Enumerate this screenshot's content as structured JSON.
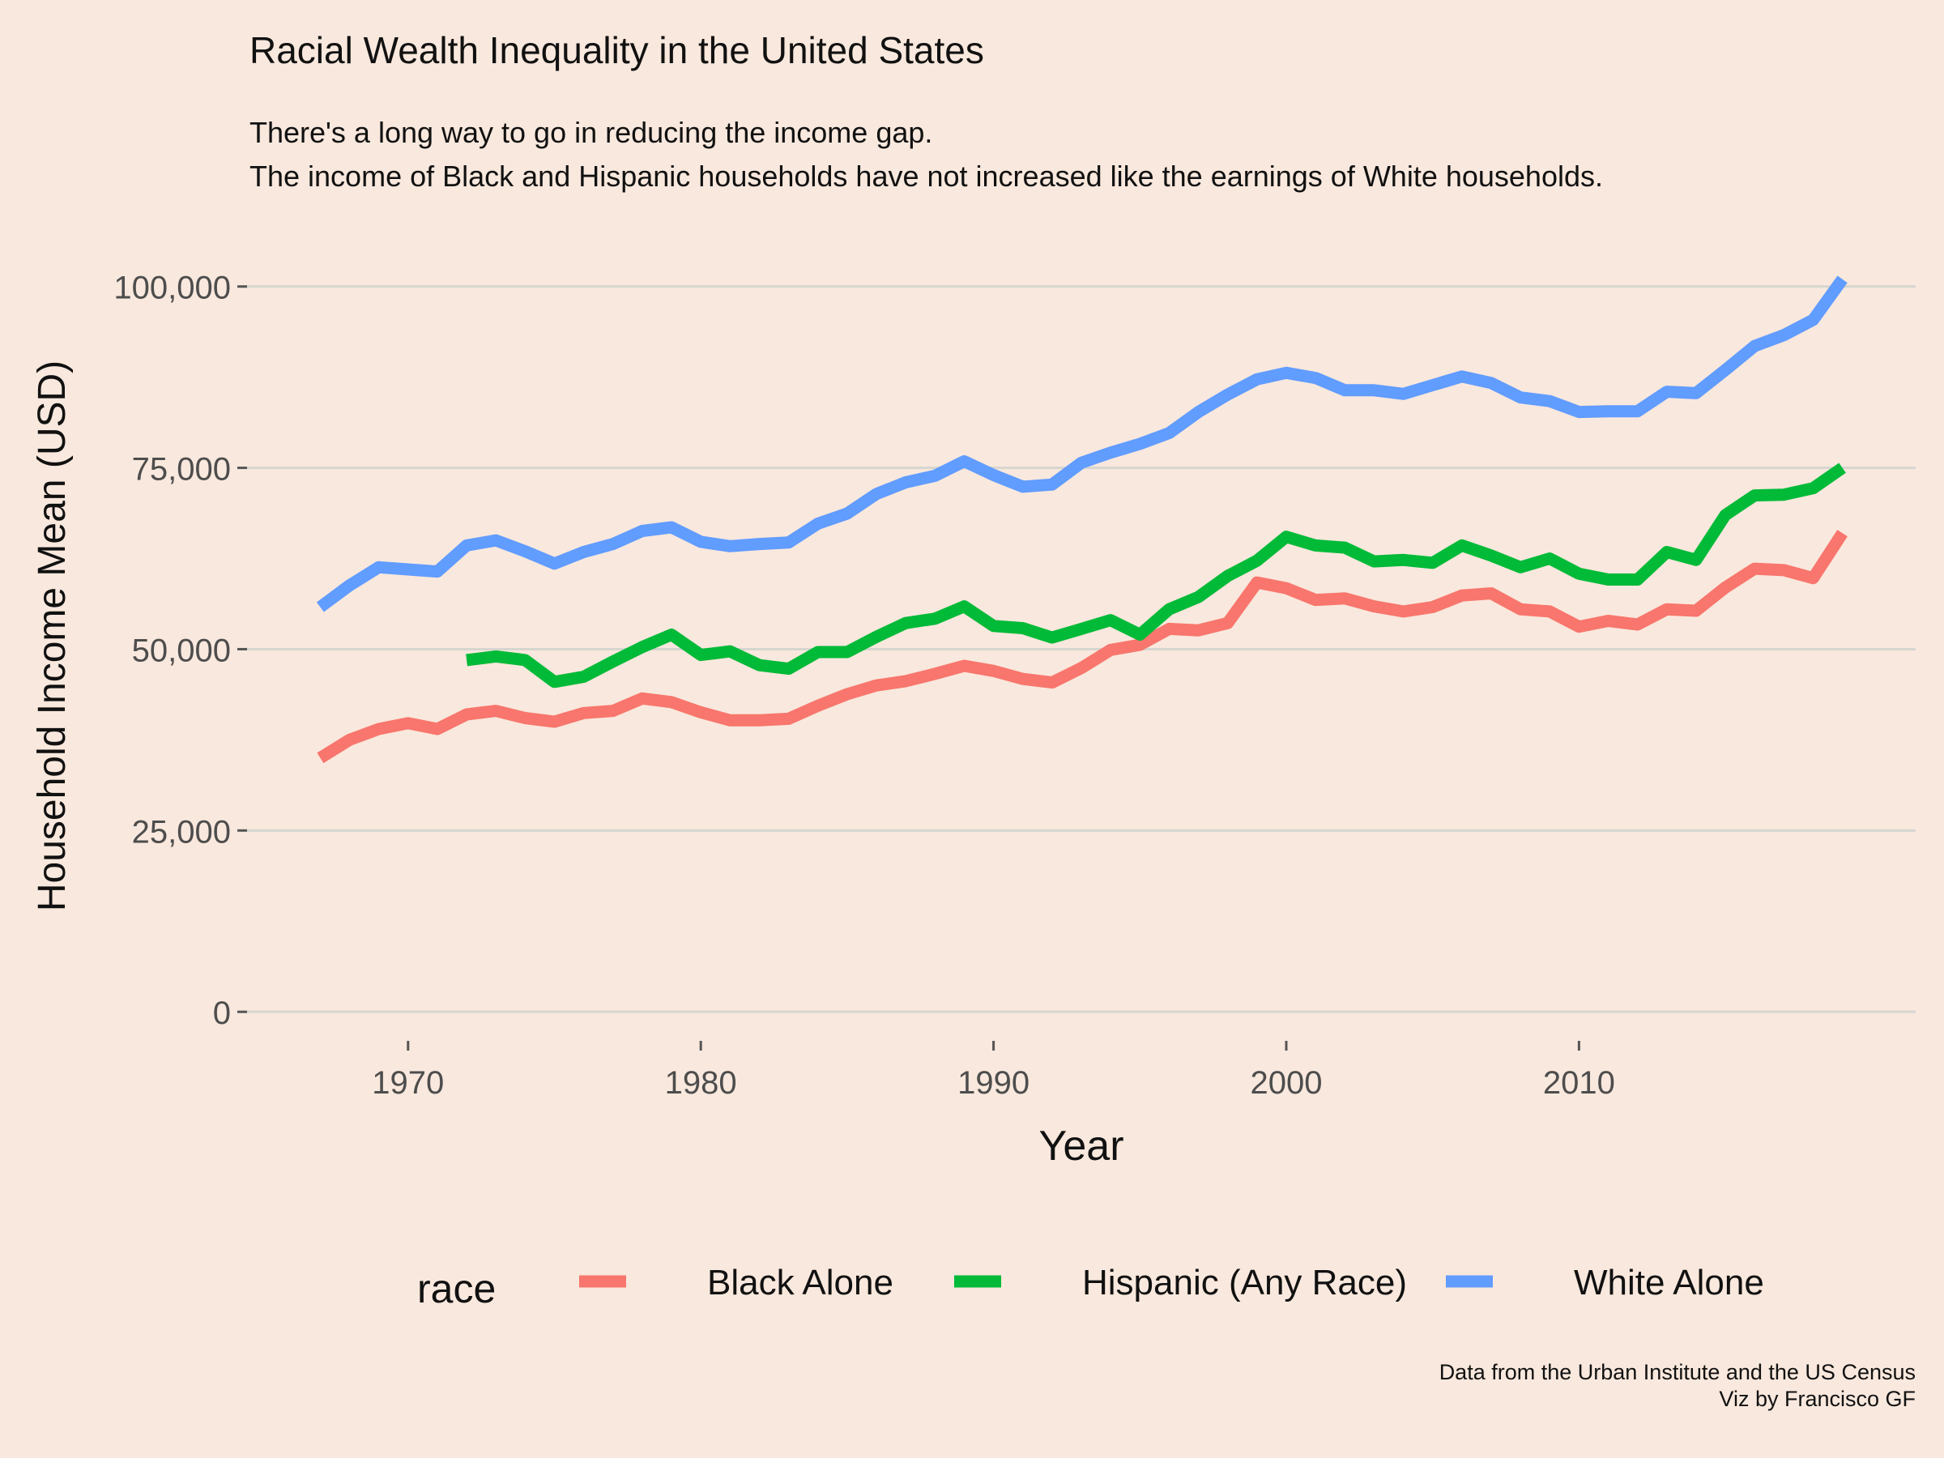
{
  "title": "Racial Wealth Inequality in the United States",
  "subtitle_lines": [
    "There's a long way to go in reducing the income gap.",
    "The income of Black and Hispanic households have not increased like the earnings of White households."
  ],
  "caption_lines": [
    "Data from the Urban Institute and the US Census",
    "Viz by Francisco GF"
  ],
  "chart_data": {
    "type": "line",
    "title": "Racial Wealth Inequality in the United States",
    "xlabel": "Year",
    "ylabel": "Household Income Mean (USD)",
    "xlim": [
      1964.5,
      2021.5
    ],
    "ylim": [
      -4000,
      106000
    ],
    "x_ticks": [
      1970,
      1980,
      1990,
      2000,
      2010
    ],
    "x_tick_labels": [
      "1970",
      "1980",
      "1990",
      "2000",
      "2010"
    ],
    "y_ticks": [
      0,
      25000,
      50000,
      75000,
      100000
    ],
    "y_tick_labels": [
      "0",
      "25,000",
      "50,000",
      "75,000",
      "100,000"
    ],
    "grid": "horizontal",
    "legend": {
      "title": "race",
      "position": "bottom"
    },
    "series": [
      {
        "name": "Black Alone",
        "color": "#f8766d",
        "x": [
          1967,
          1968,
          1969,
          1970,
          1971,
          1972,
          1973,
          1974,
          1975,
          1976,
          1977,
          1978,
          1979,
          1980,
          1981,
          1982,
          1983,
          1984,
          1985,
          1986,
          1987,
          1988,
          1989,
          1990,
          1991,
          1992,
          1993,
          1994,
          1995,
          1996,
          1997,
          1998,
          1999,
          2000,
          2001,
          2002,
          2003,
          2004,
          2005,
          2006,
          2007,
          2008,
          2009,
          2010,
          2011,
          2012,
          2013,
          2014,
          2015,
          2016,
          2017,
          2018,
          2019
        ],
        "values": [
          35000,
          37500,
          39000,
          39800,
          39000,
          41000,
          41500,
          40500,
          40000,
          41200,
          41500,
          43200,
          42700,
          41300,
          40200,
          40200,
          40400,
          42200,
          43800,
          45000,
          45600,
          46600,
          47700,
          47000,
          45900,
          45400,
          47400,
          49900,
          50600,
          52800,
          52600,
          53600,
          59200,
          58400,
          56800,
          57000,
          55900,
          55200,
          55800,
          57400,
          57700,
          55500,
          55200,
          53100,
          53900,
          53400,
          55500,
          55300,
          58500,
          61100,
          60900,
          59800,
          66000
        ]
      },
      {
        "name": "Hispanic (Any Race)",
        "color": "#00ba38",
        "x": [
          1972,
          1973,
          1974,
          1975,
          1976,
          1977,
          1978,
          1979,
          1980,
          1981,
          1982,
          1983,
          1984,
          1985,
          1986,
          1987,
          1988,
          1989,
          1990,
          1991,
          1992,
          1993,
          1994,
          1995,
          1996,
          1997,
          1998,
          1999,
          2000,
          2001,
          2002,
          2003,
          2004,
          2005,
          2006,
          2007,
          2008,
          2009,
          2010,
          2011,
          2012,
          2013,
          2014,
          2015,
          2016,
          2017,
          2018,
          2019
        ],
        "values": [
          48500,
          49000,
          48500,
          45500,
          46200,
          48300,
          50300,
          52000,
          49200,
          49700,
          47800,
          47300,
          49600,
          49600,
          51700,
          53600,
          54200,
          55900,
          53200,
          52900,
          51600,
          52800,
          54000,
          52000,
          55500,
          57200,
          60100,
          62200,
          65500,
          64300,
          64000,
          62100,
          62300,
          61900,
          64300,
          62900,
          61300,
          62500,
          60400,
          59600,
          59600,
          63400,
          62300,
          68500,
          71200,
          71300,
          72200,
          75000
        ]
      },
      {
        "name": "White Alone",
        "color": "#619cff",
        "x": [
          1967,
          1968,
          1969,
          1970,
          1971,
          1972,
          1973,
          1974,
          1975,
          1976,
          1977,
          1978,
          1979,
          1980,
          1981,
          1982,
          1983,
          1984,
          1985,
          1986,
          1987,
          1988,
          1989,
          1990,
          1991,
          1992,
          1993,
          1994,
          1995,
          1996,
          1997,
          1998,
          1999,
          2000,
          2001,
          2002,
          2003,
          2004,
          2005,
          2006,
          2007,
          2008,
          2009,
          2010,
          2011,
          2012,
          2013,
          2014,
          2015,
          2016,
          2017,
          2018,
          2019
        ],
        "values": [
          55800,
          58800,
          61300,
          61000,
          60700,
          64300,
          65000,
          63500,
          61800,
          63400,
          64500,
          66300,
          66800,
          64800,
          64200,
          64500,
          64700,
          67300,
          68700,
          71400,
          73000,
          73900,
          75900,
          74000,
          72400,
          72700,
          75700,
          77100,
          78300,
          79800,
          82700,
          85100,
          87200,
          88100,
          87400,
          85700,
          85700,
          85200,
          86400,
          87600,
          86700,
          84700,
          84200,
          82700,
          82800,
          82800,
          85500,
          85300,
          88500,
          91800,
          93300,
          95400,
          101000
        ]
      }
    ]
  }
}
